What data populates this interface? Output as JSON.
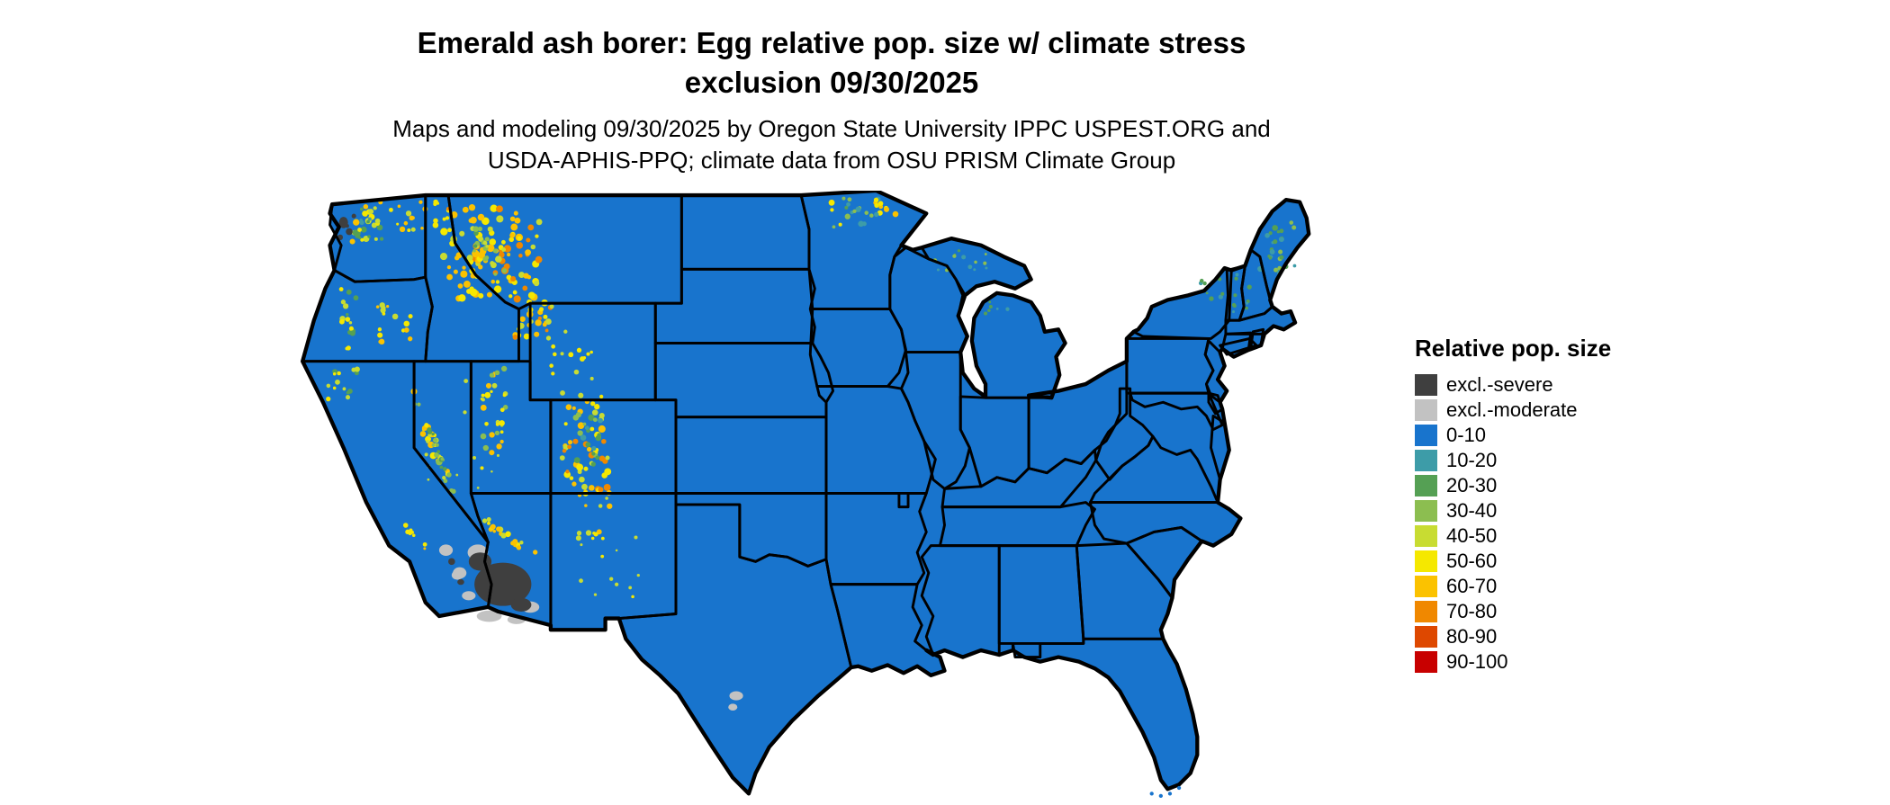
{
  "title": {
    "line1": "Emerald ash borer: Egg relative pop. size w/ climate stress",
    "line2": "exclusion 09/30/2025"
  },
  "subtitle": {
    "line1": "Maps and modeling 09/30/2025 by Oregon State University IPPC USPEST.ORG and",
    "line2": "USDA-APHIS-PPQ; climate data from OSU PRISM Climate Group"
  },
  "legend": {
    "title": "Relative pop. size",
    "items": [
      {
        "label": "excl.-severe",
        "color": "#3F3F3F"
      },
      {
        "label": "excl.-moderate",
        "color": "#C2C2C2"
      },
      {
        "label": "0-10",
        "color": "#1874CD"
      },
      {
        "label": "10-20",
        "color": "#3D9CA8"
      },
      {
        "label": "20-30",
        "color": "#55A054"
      },
      {
        "label": "30-40",
        "color": "#8CBE50"
      },
      {
        "label": "40-50",
        "color": "#C8DC32"
      },
      {
        "label": "50-60",
        "color": "#F5E800"
      },
      {
        "label": "60-70",
        "color": "#FBC200"
      },
      {
        "label": "70-80",
        "color": "#F08800"
      },
      {
        "label": "80-90",
        "color": "#DE4800"
      },
      {
        "label": "90-100",
        "color": "#C80000"
      }
    ]
  },
  "map": {
    "type": "choropleth-map",
    "region_shown": "Continental United States with state borders",
    "base_fill": "#1874CD",
    "border_color": "#000000",
    "background": "#FFFFFF"
  }
}
